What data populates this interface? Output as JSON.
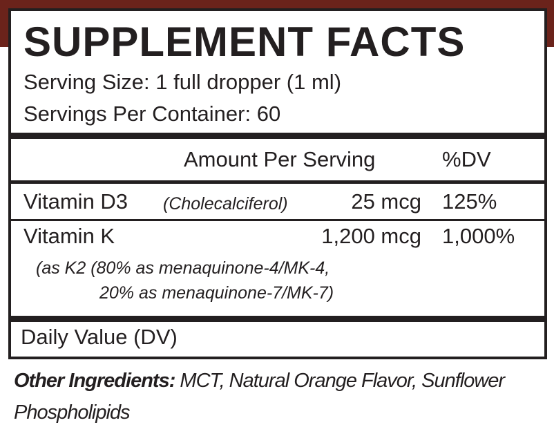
{
  "panel": {
    "title": "SUPPLEMENT FACTS",
    "serving_size": "Serving Size: 1 full dropper (1 ml)",
    "servings_per_container": "Servings Per Container: 60",
    "header_amount": "Amount Per Serving",
    "header_dv": "%DV",
    "rows": [
      {
        "name": "Vitamin D3",
        "detail": "(Cholecalciferol)",
        "amount": "25 mcg",
        "dv": "125%"
      },
      {
        "name": "Vitamin K",
        "detail_line1": "(as K2 (80% as menaquinone-4/MK-4,",
        "detail_line2": "20% as menaquinone-7/MK-7)",
        "amount": "1,200 mcg",
        "dv": "1,000%"
      }
    ],
    "footnote": "Daily Value (DV)"
  },
  "other_ingredients": {
    "label": "Other Ingredients:",
    "text": " MCT, Natural Orange Flavor, Sunflower Phospholipids"
  },
  "colors": {
    "border": "#231f20",
    "top_strip": "#6b231b"
  }
}
